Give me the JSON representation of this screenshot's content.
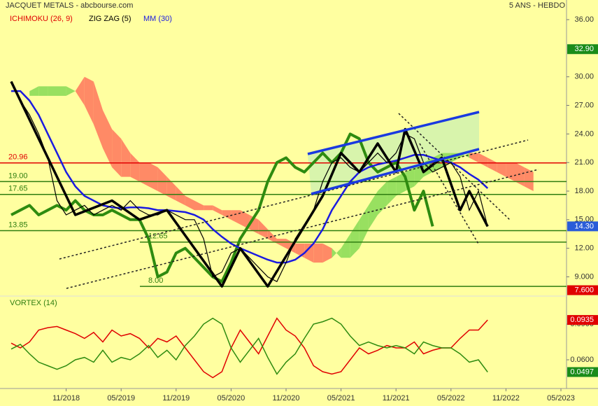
{
  "chart_data": [
    {
      "type": "line",
      "title": "JACQUET METALS - abcbourse.com",
      "subtitle": "5 ANS - HEBDO",
      "x": [
        "05/2018",
        "06/2018",
        "07/2018",
        "08/2018",
        "09/2018",
        "10/2018",
        "11/2018",
        "12/2018",
        "01/2019",
        "02/2019",
        "03/2019",
        "04/2019",
        "05/2019",
        "06/2019",
        "07/2019",
        "08/2019",
        "09/2019",
        "10/2019",
        "11/2019",
        "12/2019",
        "01/2020",
        "02/2020",
        "03/2020",
        "04/2020",
        "05/2020",
        "06/2020",
        "07/2020",
        "08/2020",
        "09/2020",
        "10/2020",
        "11/2020",
        "12/2020",
        "01/2021",
        "02/2021",
        "03/2021",
        "04/2021",
        "05/2021",
        "06/2021",
        "07/2021",
        "08/2021",
        "09/2021",
        "10/2021",
        "11/2021",
        "12/2021",
        "01/2022",
        "02/2022",
        "03/2022",
        "04/2022",
        "05/2022",
        "06/2022",
        "07/2022",
        "08/2022",
        "09/2022"
      ],
      "close": {
        "color": "#000000",
        "values": [
          29.5,
          27.5,
          26,
          24,
          21.5,
          17,
          15.5,
          16,
          16.5,
          15.5,
          16,
          16.5,
          16,
          17,
          16,
          15.5,
          15.5,
          16,
          15.5,
          15,
          15,
          13,
          9,
          9.5,
          11.5,
          12,
          11,
          10,
          9,
          8.5,
          10.5,
          13,
          14.5,
          16,
          19,
          21,
          21.5,
          20.5,
          20,
          21,
          22,
          21,
          22,
          24,
          23.5,
          21,
          20,
          20.5,
          21,
          19.5,
          16,
          18,
          14.3
        ]
      },
      "moving_average": {
        "name": "MM (30)",
        "color": "#1a1ae0",
        "values": [
          28.5,
          28.5,
          27.5,
          26,
          24,
          22,
          20,
          18.5,
          17.5,
          17,
          16.5,
          16.3,
          16.2,
          16.3,
          16.3,
          16.2,
          16,
          16,
          15.9,
          15.8,
          15.5,
          15,
          14,
          13.2,
          12.5,
          12,
          11.6,
          11.2,
          10.8,
          10.5,
          10.5,
          10.8,
          11.5,
          12.5,
          14,
          16,
          17.5,
          19,
          20,
          20.5,
          20.8,
          21,
          21.2,
          21.5,
          21.8,
          21.8,
          21.5,
          21.2,
          21,
          20.5,
          19.8,
          19.2,
          18.3
        ]
      },
      "zigzag": {
        "name": "ZIG ZAG (5)",
        "color": "#000000",
        "x": [
          "05/2018",
          "12/2018",
          "04/2019",
          "07/2019",
          "10/2019",
          "04/2020",
          "06/2020",
          "09/2020",
          "03/2021",
          "05/2021",
          "07/2021",
          "09/2021",
          "11/2021",
          "12/2021",
          "02/2022",
          "04/2022",
          "06/2022",
          "07/2022",
          "09/2022"
        ],
        "values": [
          29.5,
          15.5,
          17,
          15,
          16,
          8,
          12,
          8,
          17.5,
          22,
          20,
          23,
          20,
          24.5,
          20,
          21.5,
          16,
          18,
          14.3
        ]
      },
      "ichimoku": {
        "name": "ICHIMOKU (26, 9)",
        "color": "#e00000",
        "lagging_color": "#2e8b10",
        "bull_color": "#98e060",
        "bear_color": "#ff8a66",
        "lagging": [
          15.5,
          16,
          16.5,
          15.5,
          16,
          16.5,
          16,
          17,
          16,
          15.5,
          15.5,
          16,
          15.5,
          15,
          15,
          13,
          9,
          9.5,
          11.5,
          12,
          11,
          10,
          9,
          8.5,
          10.5,
          13,
          14.5,
          16,
          19,
          21,
          21.5,
          20.5,
          20,
          21,
          22,
          21,
          22,
          24,
          23.5,
          21,
          20,
          20.5,
          21,
          19.5,
          16,
          18,
          14.3,
          null,
          null,
          null,
          null,
          null,
          null
        ],
        "cloud_x": [
          "07/2018",
          "08/2018",
          "09/2018",
          "10/2018",
          "11/2018",
          "12/2018",
          "01/2019",
          "02/2019",
          "03/2019",
          "04/2019",
          "05/2019",
          "06/2019",
          "07/2019",
          "08/2019",
          "09/2019",
          "10/2019",
          "11/2019",
          "12/2019",
          "01/2020",
          "02/2020",
          "03/2020",
          "04/2020",
          "05/2020",
          "06/2020",
          "07/2020",
          "08/2020",
          "09/2020",
          "10/2020",
          "11/2020",
          "12/2020",
          "01/2021",
          "02/2021",
          "03/2021",
          "04/2021",
          "05/2021",
          "06/2021",
          "07/2021",
          "08/2021",
          "09/2021",
          "10/2021",
          "11/2021",
          "12/2021",
          "01/2022",
          "02/2022",
          "03/2022",
          "04/2022",
          "05/2022",
          "06/2022",
          "07/2022",
          "08/2022",
          "09/2022",
          "10/2022",
          "11/2022",
          "12/2022",
          "01/2023",
          "02/2023"
        ],
        "span_a": [
          28.5,
          29,
          29,
          29,
          29,
          28.5,
          27,
          25,
          22.5,
          20.5,
          19.5,
          19.5,
          19,
          18.5,
          18,
          17.5,
          17,
          16.5,
          16,
          16,
          16,
          15.5,
          15,
          14.5,
          14,
          13.5,
          13,
          12.5,
          12,
          11.5,
          11,
          10.5,
          10.5,
          11,
          12,
          13.5,
          15,
          16.5,
          18,
          19,
          19.5,
          20,
          20.5,
          21,
          21.5,
          22,
          22,
          22,
          21.5,
          21,
          20.5,
          20,
          19.5,
          19,
          18.5,
          18
        ],
        "span_b": [
          28,
          28,
          28,
          28,
          28,
          28.5,
          30,
          29.5,
          26.5,
          24.5,
          23.5,
          22,
          21,
          21,
          20.5,
          19.5,
          18.5,
          17.5,
          17,
          16.5,
          16.5,
          16,
          16,
          16,
          15.5,
          15,
          14,
          13,
          13,
          12.5,
          12.5,
          12.5,
          12.5,
          12,
          11,
          11,
          12,
          14,
          15.5,
          16.5,
          17.5,
          18,
          18.5,
          19.5,
          20,
          20.5,
          21,
          21.5,
          22,
          22,
          21.5,
          21,
          21,
          21,
          20.5,
          20
        ]
      },
      "levels": [
        {
          "value": 20.96,
          "label": "20.96",
          "color": "#e00000"
        },
        {
          "value": 19,
          "label": "19.00",
          "color": "#2e7d10"
        },
        {
          "value": 17.65,
          "label": "17.65",
          "color": "#2e7d10"
        },
        {
          "value": 13.85,
          "label": "13.85",
          "color": "#2e7d10"
        },
        {
          "value": 12.65,
          "label": "12.65",
          "color": "#2e7d10"
        },
        {
          "value": 8,
          "label": "8.00",
          "color": "#2e7d10"
        }
      ],
      "markers": [
        {
          "value": 32.9,
          "label": "32.90",
          "color": "#1a8c1a"
        },
        {
          "value": 14.3,
          "label": "14.30",
          "color": "#2a5cd8"
        },
        {
          "value": 7.6,
          "label": "7.600",
          "color": "#e00000"
        }
      ],
      "ylim": [
        7.2,
        38.06
      ],
      "yticks": [
        {
          "value": 36,
          "label": "36.00"
        },
        {
          "value": 30,
          "label": "30.00"
        },
        {
          "value": 27,
          "label": "27.00"
        },
        {
          "value": 24,
          "label": "24.00"
        },
        {
          "value": 21,
          "label": "21.00"
        },
        {
          "value": 18,
          "label": "18.00"
        },
        {
          "value": 15,
          "label": "15.00"
        },
        {
          "value": 12,
          "label": "12.00"
        },
        {
          "value": 9,
          "label": "9.000"
        }
      ]
    },
    {
      "type": "line",
      "title": "VORTEX (14)",
      "x": [
        "05/2018",
        "06/2018",
        "07/2018",
        "08/2018",
        "09/2018",
        "10/2018",
        "11/2018",
        "12/2018",
        "01/2019",
        "02/2019",
        "03/2019",
        "04/2019",
        "05/2019",
        "06/2019",
        "07/2019",
        "08/2019",
        "09/2019",
        "10/2019",
        "11/2019",
        "12/2019",
        "01/2020",
        "02/2020",
        "03/2020",
        "04/2020",
        "05/2020",
        "06/2020",
        "07/2020",
        "08/2020",
        "09/2020",
        "10/2020",
        "11/2020",
        "12/2020",
        "01/2021",
        "02/2021",
        "03/2021",
        "04/2021",
        "05/2021",
        "06/2021",
        "07/2021",
        "08/2021",
        "09/2021",
        "10/2021",
        "11/2021",
        "12/2021",
        "01/2022",
        "02/2022",
        "03/2022",
        "04/2022",
        "05/2022",
        "06/2022",
        "07/2022",
        "08/2022",
        "09/2022"
      ],
      "series": [
        {
          "color": "#e00000",
          "values": [
            0.074,
            0.07,
            0.075,
            0.085,
            0.087,
            0.088,
            0.085,
            0.082,
            0.078,
            0.083,
            0.075,
            0.085,
            0.08,
            0.082,
            0.078,
            0.07,
            0.078,
            0.075,
            0.08,
            0.07,
            0.06,
            0.05,
            0.045,
            0.05,
            0.07,
            0.085,
            0.075,
            0.065,
            0.08,
            0.095,
            0.085,
            0.08,
            0.07,
            0.055,
            0.05,
            0.048,
            0.05,
            0.06,
            0.07,
            0.065,
            0.068,
            0.072,
            0.07,
            0.07,
            0.075,
            0.065,
            0.068,
            0.07,
            0.07,
            0.078,
            0.085,
            0.085,
            0.0935
          ]
        },
        {
          "color": "#2e8b10",
          "values": [
            0.069,
            0.073,
            0.065,
            0.058,
            0.055,
            0.052,
            0.055,
            0.06,
            0.062,
            0.058,
            0.068,
            0.058,
            0.062,
            0.06,
            0.065,
            0.072,
            0.062,
            0.068,
            0.06,
            0.072,
            0.08,
            0.09,
            0.095,
            0.09,
            0.07,
            0.058,
            0.068,
            0.078,
            0.062,
            0.048,
            0.058,
            0.065,
            0.078,
            0.09,
            0.092,
            0.095,
            0.09,
            0.08,
            0.072,
            0.075,
            0.072,
            0.07,
            0.072,
            0.07,
            0.065,
            0.075,
            0.072,
            0.07,
            0.07,
            0.065,
            0.058,
            0.06,
            0.0497
          ]
        }
      ],
      "markers": [
        {
          "value": 0.0935,
          "label": "0.0935",
          "color": "#e00000"
        },
        {
          "value": 0.0497,
          "label": "0.0497",
          "color": "#1a8c1a"
        }
      ],
      "ylim": [
        0.0388,
        0.1124
      ],
      "yticks": [
        {
          "value": 0.09,
          "label": "0.0900"
        },
        {
          "value": 0.06,
          "label": "0.0600"
        }
      ],
      "xticks": [
        "11/2018",
        "05/2019",
        "11/2019",
        "05/2020",
        "11/2020",
        "05/2021",
        "11/2021",
        "05/2022",
        "11/2022",
        "05/2023"
      ]
    }
  ]
}
